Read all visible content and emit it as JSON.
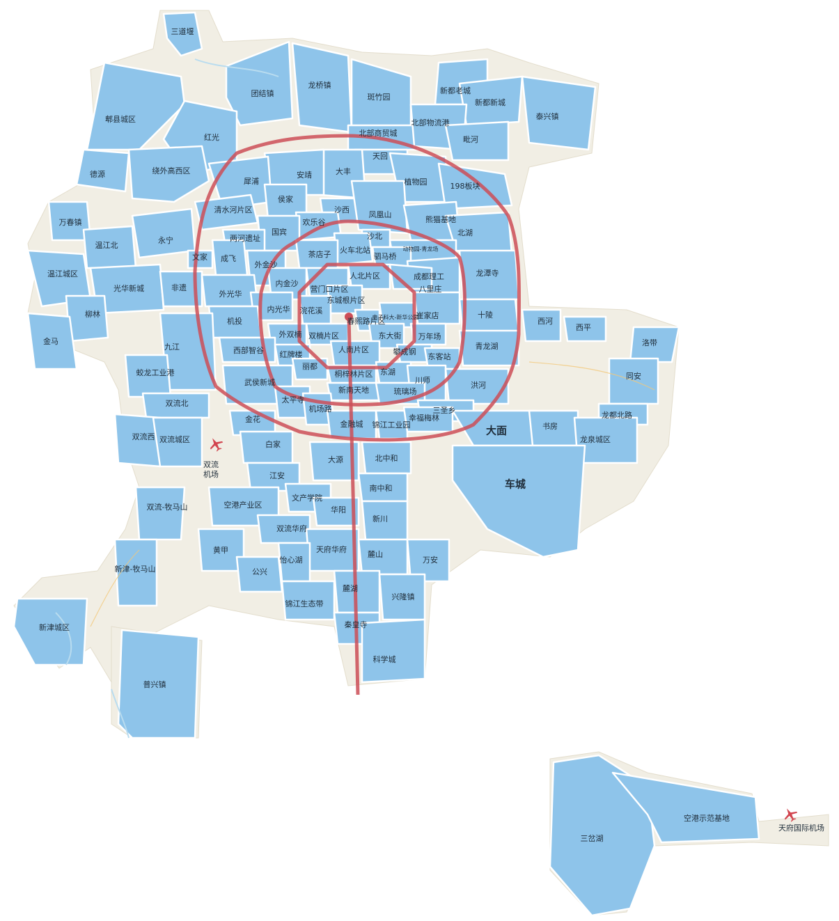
{
  "colors": {
    "district": "#8ec4ea",
    "ring": "#cc4e57",
    "base": "#f1eee4",
    "airport_icon": "#d2454f"
  },
  "airports": [
    {
      "icon": "airplane-icon",
      "label": "双流\n机场"
    },
    {
      "icon": "airplane-icon",
      "label": "天府国际机场"
    }
  ],
  "labels": [
    "三道堰",
    "团结镇",
    "龙桥镇",
    "斑竹园",
    "新都老城",
    "新都新城",
    "泰兴镇",
    "郫县城区",
    "红光",
    "北部商贸城",
    "北部物流港",
    "毗河",
    "德源",
    "绕外高西区",
    "天回",
    "大丰",
    "安靖",
    "犀浦",
    "植物园",
    "198板块",
    "万春镇",
    "清水河片区",
    "侯家",
    "沙西",
    "凤凰山",
    "熊猫基地",
    "北湖",
    "欢乐谷",
    "国宾",
    "两河遗址",
    "沙北",
    "温江北",
    "永宁",
    "火车北站",
    "动物园-青龙场",
    "驷马桥",
    "茶店子",
    "文家",
    "成飞",
    "外金沙",
    "成都理工",
    "龙潭寺",
    "温江城区",
    "内金沙",
    "营门口片区",
    "人北片区",
    "八里庄",
    "光华新城",
    "非遗",
    "外光华",
    "东城根片区",
    "内光华",
    "浣花溪",
    "春熙路片区",
    "电子科大-新华公园",
    "崔家店",
    "十陵",
    "西河",
    "西平",
    "柳林",
    "机投",
    "金马",
    "外双楠",
    "双楠片区",
    "东大街",
    "万年场",
    "洛带",
    "九江",
    "西部智谷",
    "青龙湖",
    "红牌楼",
    "人南片区",
    "攀成钢",
    "东客站",
    "蛟龙工业港",
    "丽都",
    "桐梓林片区",
    "东湖",
    "川师",
    "同安",
    "武侯新城",
    "洪河",
    "新南天地",
    "双流北",
    "琉璃场",
    "太平寺",
    "机场路",
    "三圣乡",
    "龙都北路",
    "金花",
    "金融城",
    "锦江工业园",
    "幸福梅林",
    "大面",
    "书房",
    "双流西",
    "双流城区",
    "白家",
    "北中和",
    "龙泉城区",
    "大源",
    "车城",
    "江安",
    "南中和",
    "双流-牧马山",
    "文产学院",
    "空港产业区",
    "华阳",
    "新川",
    "双流华府",
    "黄甲",
    "天府华府",
    "麓山",
    "万安",
    "新津-牧马山",
    "公兴",
    "怡心湖",
    "麓湖",
    "兴隆镇",
    "锦江生态带",
    "新津城区",
    "秦皇寺",
    "科学城",
    "普兴镇",
    "三岔湖",
    "空港示范基地"
  ]
}
